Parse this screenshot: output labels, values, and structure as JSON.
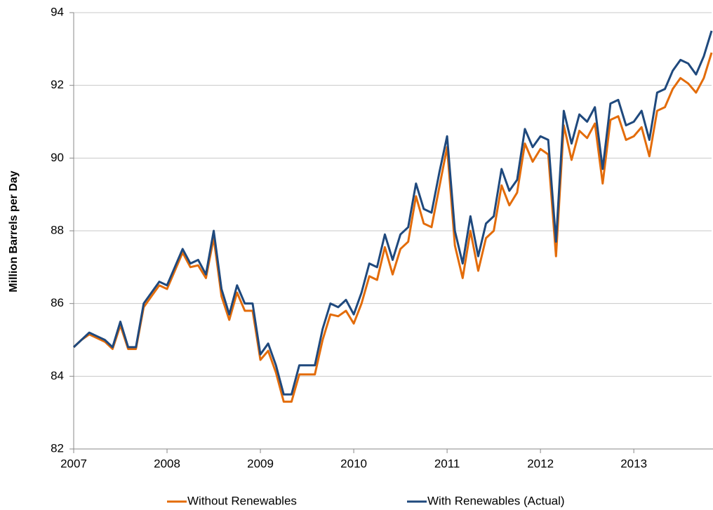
{
  "chart_data": {
    "type": "line",
    "y_label": "Million Barrels per Day",
    "categories": [
      "2007",
      null,
      null,
      null,
      null,
      null,
      null,
      null,
      null,
      null,
      null,
      null,
      "2008",
      null,
      null,
      null,
      null,
      null,
      null,
      null,
      null,
      null,
      null,
      null,
      "2009",
      null,
      null,
      null,
      null,
      null,
      null,
      null,
      null,
      null,
      null,
      null,
      "2010",
      null,
      null,
      null,
      null,
      null,
      null,
      null,
      null,
      null,
      null,
      null,
      "2011",
      null,
      null,
      null,
      null,
      null,
      null,
      null,
      null,
      null,
      null,
      null,
      "2012",
      null,
      null,
      null,
      null,
      null,
      null,
      null,
      null,
      null,
      null,
      null,
      "2013",
      null,
      null,
      null,
      null,
      null,
      null,
      null,
      null,
      null,
      null
    ],
    "series": [
      {
        "name": "Without Renewables",
        "color": "#e36c0a",
        "values": [
          84.8,
          85.0,
          85.15,
          85.05,
          84.95,
          84.75,
          85.4,
          84.75,
          84.75,
          85.9,
          86.2,
          86.5,
          86.4,
          86.9,
          87.4,
          87.0,
          87.05,
          86.7,
          87.8,
          86.2,
          85.55,
          86.3,
          85.8,
          85.8,
          84.45,
          84.7,
          84.1,
          83.3,
          83.3,
          84.05,
          84.05,
          84.05,
          85.0,
          85.7,
          85.65,
          85.8,
          85.45,
          86.0,
          86.75,
          86.65,
          87.55,
          86.8,
          87.5,
          87.7,
          88.95,
          88.2,
          88.1,
          89.2,
          90.3,
          87.6,
          86.7,
          88.0,
          86.9,
          87.8,
          88.0,
          89.25,
          88.7,
          89.05,
          90.4,
          89.9,
          90.25,
          90.1,
          87.3,
          90.9,
          89.95,
          90.75,
          90.55,
          90.95,
          89.3,
          91.05,
          91.15,
          90.5,
          90.6,
          90.85,
          90.05,
          91.3,
          91.4,
          91.9,
          92.2,
          92.05,
          91.8,
          92.2,
          92.9
        ]
      },
      {
        "name": "With Renewables (Actual)",
        "color": "#1f497d",
        "values": [
          84.8,
          85.0,
          85.2,
          85.1,
          85.0,
          84.8,
          85.5,
          84.8,
          84.8,
          86.0,
          86.3,
          86.6,
          86.5,
          87.0,
          87.5,
          87.1,
          87.2,
          86.8,
          88.0,
          86.4,
          85.7,
          86.5,
          86.0,
          86.0,
          84.6,
          84.9,
          84.3,
          83.5,
          83.5,
          84.3,
          84.3,
          84.3,
          85.3,
          86.0,
          85.9,
          86.1,
          85.7,
          86.3,
          87.1,
          87.0,
          87.9,
          87.2,
          87.9,
          88.1,
          89.3,
          88.6,
          88.5,
          89.6,
          90.6,
          88.0,
          87.1,
          88.4,
          87.3,
          88.2,
          88.4,
          89.7,
          89.1,
          89.4,
          90.8,
          90.3,
          90.6,
          90.5,
          87.7,
          91.3,
          90.4,
          91.2,
          91.0,
          91.4,
          89.7,
          91.5,
          91.6,
          90.9,
          91.0,
          91.3,
          90.5,
          91.8,
          91.9,
          92.4,
          92.7,
          92.6,
          92.3,
          92.8,
          93.5
        ]
      }
    ],
    "ylim": [
      82,
      94
    ],
    "yticks": [
      82,
      84,
      86,
      88,
      90,
      92,
      94
    ],
    "grid": true,
    "legend": "bottom"
  }
}
